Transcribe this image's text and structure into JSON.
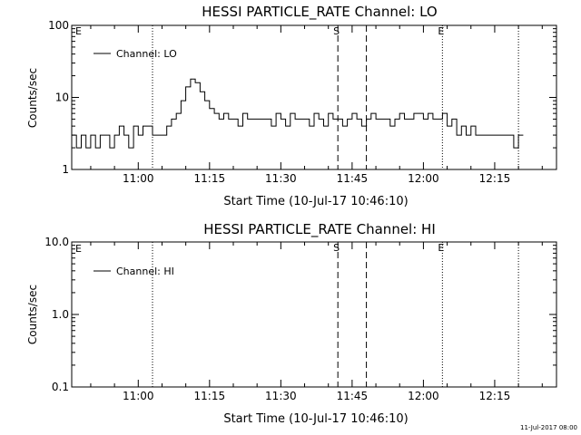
{
  "footer": {
    "timestamp": "11-Jul-2017 08:00"
  },
  "chart_data": [
    {
      "type": "line",
      "title": "HESSI PARTICLE_RATE Channel: LO",
      "xlabel": "Start Time (10-Jul-17 10:46:10)",
      "ylabel": "Counts/sec",
      "yscale": "log",
      "ylim": [
        1,
        100
      ],
      "yticks": [
        1,
        10,
        100
      ],
      "ytick_labels": [
        "1",
        "10",
        "100"
      ],
      "xlim": [
        "10:46",
        "12:28"
      ],
      "xticks": [
        "11:00",
        "11:15",
        "11:30",
        "11:45",
        "12:00",
        "12:15"
      ],
      "legend": "top-left",
      "series": [
        {
          "name": "Channel: LO",
          "x": [
            "10:46",
            "10:47",
            "10:48",
            "10:49",
            "10:50",
            "10:51",
            "10:52",
            "10:53",
            "10:54",
            "10:55",
            "10:56",
            "10:57",
            "10:58",
            "10:59",
            "11:00",
            "11:01",
            "11:02",
            "11:03",
            "11:04",
            "11:05",
            "11:06",
            "11:07",
            "11:08",
            "11:09",
            "11:10",
            "11:11",
            "11:12",
            "11:13",
            "11:14",
            "11:15",
            "11:16",
            "11:17",
            "11:18",
            "11:19",
            "11:20",
            "11:21",
            "11:22",
            "11:23",
            "11:24",
            "11:25",
            "11:26",
            "11:27",
            "11:28",
            "11:29",
            "11:30",
            "11:31",
            "11:32",
            "11:33",
            "11:34",
            "11:35",
            "11:36",
            "11:37",
            "11:38",
            "11:39",
            "11:40",
            "11:41",
            "11:42",
            "11:43",
            "11:44",
            "11:45",
            "11:46",
            "11:47",
            "11:48",
            "11:49",
            "11:50",
            "11:51",
            "11:52",
            "11:53",
            "11:54",
            "11:55",
            "11:56",
            "11:57",
            "11:58",
            "11:59",
            "12:00",
            "12:01",
            "12:02",
            "12:03",
            "12:04",
            "12:05",
            "12:06",
            "12:07",
            "12:08",
            "12:09",
            "12:10",
            "12:11",
            "12:12",
            "12:13",
            "12:14",
            "12:15",
            "12:16",
            "12:17",
            "12:18",
            "12:19",
            "12:20"
          ],
          "y": [
            3,
            2,
            3,
            2,
            3,
            2,
            3,
            3,
            2,
            3,
            4,
            3,
            2,
            4,
            3,
            4,
            4,
            3,
            3,
            3,
            4,
            5,
            6,
            9,
            14,
            18,
            16,
            12,
            9,
            7,
            6,
            5,
            6,
            5,
            5,
            4,
            6,
            5,
            5,
            5,
            5,
            5,
            4,
            6,
            5,
            4,
            6,
            5,
            5,
            5,
            4,
            6,
            5,
            4,
            6,
            5,
            5,
            4,
            5,
            6,
            5,
            4,
            5,
            6,
            5,
            5,
            5,
            4,
            5,
            6,
            5,
            5,
            6,
            6,
            5,
            6,
            5,
            5,
            6,
            4,
            5,
            3,
            4,
            3,
            4,
            3,
            3,
            3,
            3,
            3,
            3,
            3,
            3,
            2,
            3
          ]
        }
      ],
      "vlines": [
        {
          "x": "11:03",
          "style": "dotted",
          "label": ""
        },
        {
          "x": "11:42",
          "style": "dashed",
          "label": "S"
        },
        {
          "x": "11:48",
          "style": "dashed",
          "label": ""
        },
        {
          "x": "12:04",
          "style": "dotted",
          "label": "E"
        },
        {
          "x": "12:20",
          "style": "dotted",
          "label": ""
        }
      ],
      "corner_label": "E"
    },
    {
      "type": "line",
      "title": "HESSI PARTICLE_RATE Channel: HI",
      "xlabel": "Start Time (10-Jul-17 10:46:10)",
      "ylabel": "Counts/sec",
      "yscale": "log",
      "ylim": [
        0.1,
        10
      ],
      "yticks": [
        0.1,
        1,
        10
      ],
      "ytick_labels": [
        "0.1",
        "1.0",
        "10.0"
      ],
      "xlim": [
        "10:46",
        "12:28"
      ],
      "xticks": [
        "11:00",
        "11:15",
        "11:30",
        "11:45",
        "12:00",
        "12:15"
      ],
      "legend": "top-left",
      "series": [
        {
          "name": "Channel: HI",
          "x": [],
          "y": []
        }
      ],
      "vlines": [
        {
          "x": "11:03",
          "style": "dotted",
          "label": ""
        },
        {
          "x": "11:42",
          "style": "dashed",
          "label": "S"
        },
        {
          "x": "11:48",
          "style": "dashed",
          "label": ""
        },
        {
          "x": "12:04",
          "style": "dotted",
          "label": "E"
        },
        {
          "x": "12:20",
          "style": "dotted",
          "label": ""
        }
      ],
      "corner_label": "E"
    }
  ]
}
